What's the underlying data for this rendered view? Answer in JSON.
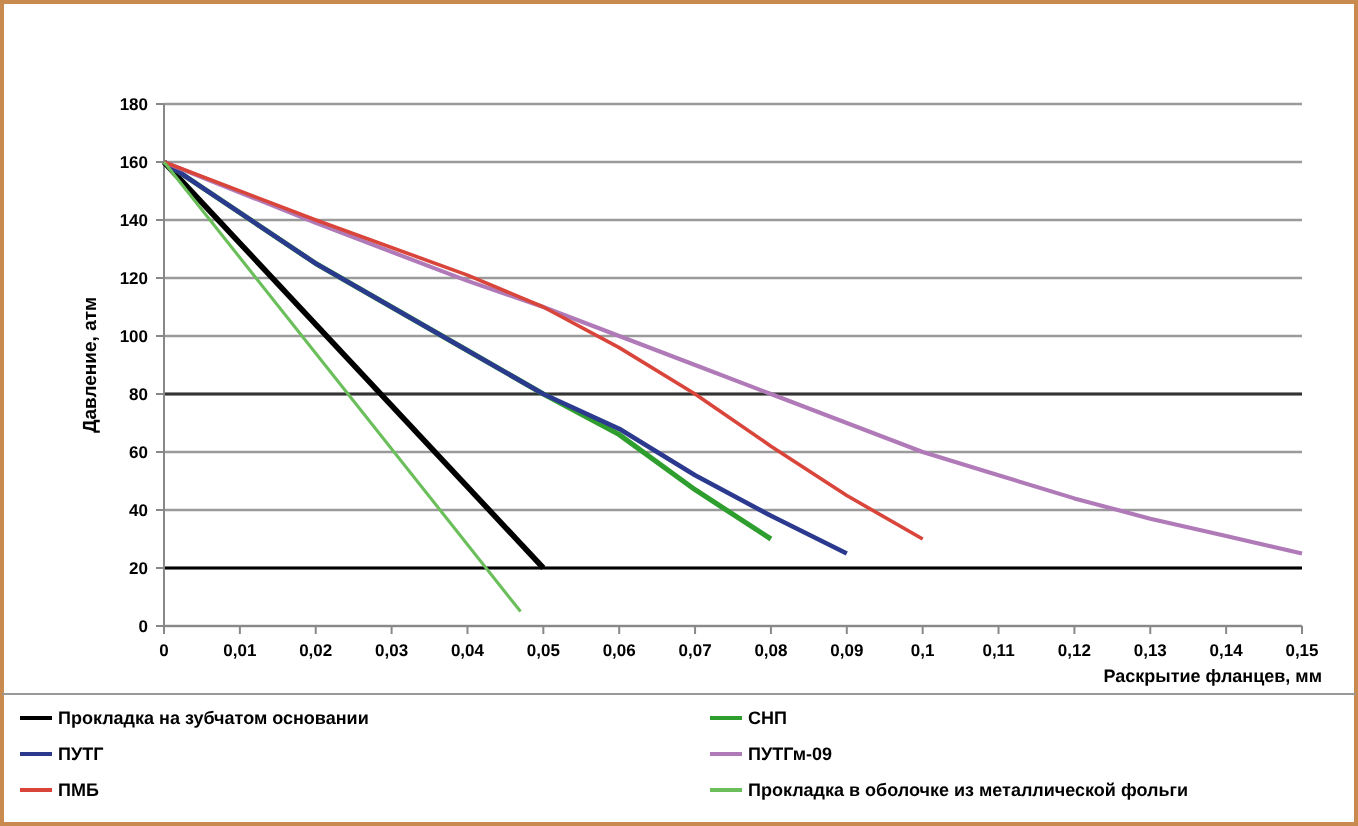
{
  "chart_data": {
    "type": "line",
    "xlabel": "Раскрытие фланцев, мм",
    "ylabel": "Давление, атм",
    "xlim": [
      0,
      0.15
    ],
    "xticks": [
      0,
      {
        "value": 0.01,
        "label": "0,01"
      },
      {
        "value": 0.02,
        "label": "0,02"
      },
      {
        "value": 0.03,
        "label": "0,03"
      },
      {
        "value": 0.04,
        "label": "0,04"
      },
      {
        "value": 0.05,
        "label": "0,05"
      },
      {
        "value": 0.06,
        "label": "0,06"
      },
      {
        "value": 0.07,
        "label": "0,07"
      },
      {
        "value": 0.08,
        "label": "0,08"
      },
      {
        "value": 0.09,
        "label": "0,09"
      },
      {
        "value": 0.1,
        "label": "0,1"
      },
      {
        "value": 0.11,
        "label": "0,11"
      },
      {
        "value": 0.12,
        "label": "0,12"
      },
      {
        "value": 0.13,
        "label": "0,13"
      },
      {
        "value": 0.14,
        "label": "0,14"
      },
      {
        "value": 0.15,
        "label": "0,15"
      }
    ],
    "ylim": [
      0,
      180
    ],
    "yticks": [
      0,
      20,
      40,
      60,
      80,
      100,
      120,
      140,
      160,
      180
    ],
    "grid": "y",
    "legend": "bottom",
    "marker": "none",
    "line_style": "solid",
    "ref_lines": [
      {
        "axis": "y",
        "value": 80,
        "color": "#333333"
      },
      {
        "axis": "y",
        "value": 20,
        "color": "#000000"
      }
    ],
    "series": [
      {
        "name": "Прокладка на зубчатом основании",
        "color": "#000000",
        "x": [
          0,
          0.05
        ],
        "values": [
          160,
          20
        ]
      },
      {
        "name": "СНП",
        "color": "#2e9e2e",
        "x": [
          0,
          0.02,
          0.04,
          0.05,
          0.06,
          0.07,
          0.08
        ],
        "values": [
          160,
          125,
          95,
          80,
          66,
          47,
          30
        ]
      },
      {
        "name": "ПУТГ",
        "color": "#2b3a8f",
        "x": [
          0,
          0.02,
          0.04,
          0.05,
          0.06,
          0.07,
          0.08,
          0.09
        ],
        "values": [
          160,
          125,
          95,
          80,
          68,
          52,
          38,
          25
        ]
      },
      {
        "name": "ПУТГм-09",
        "color": "#b07ab8",
        "x": [
          0,
          0.02,
          0.04,
          0.05,
          0.06,
          0.07,
          0.08,
          0.09,
          0.1,
          0.11,
          0.12,
          0.13,
          0.14,
          0.15
        ],
        "values": [
          160,
          139,
          119,
          110,
          100,
          90,
          80,
          70,
          60,
          52,
          44,
          37,
          31,
          25
        ]
      },
      {
        "name": "ПМБ",
        "color": "#d9453a",
        "x": [
          0,
          0.02,
          0.04,
          0.05,
          0.06,
          0.07,
          0.08,
          0.09,
          0.1
        ],
        "values": [
          160,
          140,
          121,
          110,
          96,
          80,
          62,
          45,
          30
        ]
      },
      {
        "name": "Прокладка в оболочке из металлической фольги",
        "color": "#6abf5a",
        "x": [
          0,
          0.047
        ],
        "values": [
          160,
          5
        ]
      }
    ]
  }
}
